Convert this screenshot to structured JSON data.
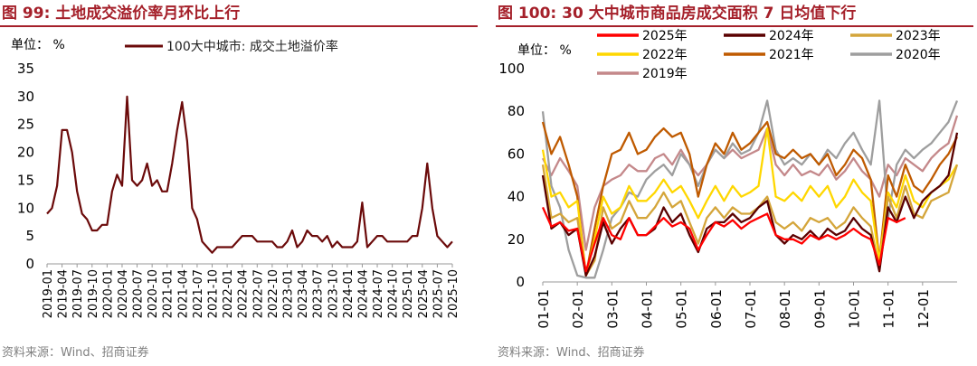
{
  "left": {
    "title": "图 99:  土地成交溢价率月环比上行",
    "source": "资料来源：Wind、招商证券",
    "chart_data": {
      "type": "line",
      "unit_label": "单位：  %",
      "legend": [
        {
          "name": "100大中城市: 成交土地溢价率",
          "color": "#6b0a0a"
        }
      ],
      "ylim": [
        0,
        35
      ],
      "yticks": [
        0,
        5,
        10,
        15,
        20,
        25,
        30,
        35
      ],
      "xlim": [
        "2019-01",
        "2025-10"
      ],
      "xticks": [
        "2019-01",
        "2019-04",
        "2019-07",
        "2019-10",
        "2020-01",
        "2020-04",
        "2020-07",
        "2020-10",
        "2021-01",
        "2021-04",
        "2021-07",
        "2021-10",
        "2022-01",
        "2022-04",
        "2022-07",
        "2022-10",
        "2023-01",
        "2023-04",
        "2023-07",
        "2023-10",
        "2024-01",
        "2024-04",
        "2024-07",
        "2024-10",
        "2025-01",
        "2025-04",
        "2025-07",
        "2025-10"
      ],
      "grid": false,
      "series": [
        {
          "name": "100大中城市: 成交土地溢价率",
          "color": "#6b0a0a",
          "x": [
            "2019-01",
            "2019-02",
            "2019-03",
            "2019-04",
            "2019-05",
            "2019-06",
            "2019-07",
            "2019-08",
            "2019-09",
            "2019-10",
            "2019-11",
            "2019-12",
            "2020-01",
            "2020-02",
            "2020-03",
            "2020-04",
            "2020-05",
            "2020-06",
            "2020-07",
            "2020-08",
            "2020-09",
            "2020-10",
            "2020-11",
            "2020-12",
            "2021-01",
            "2021-02",
            "2021-03",
            "2021-04",
            "2021-05",
            "2021-06",
            "2021-07",
            "2021-08",
            "2021-09",
            "2021-10",
            "2021-11",
            "2021-12",
            "2022-01",
            "2022-02",
            "2022-03",
            "2022-04",
            "2022-05",
            "2022-06",
            "2022-07",
            "2022-08",
            "2022-09",
            "2022-10",
            "2022-11",
            "2022-12",
            "2023-01",
            "2023-02",
            "2023-03",
            "2023-04",
            "2023-05",
            "2023-06",
            "2023-07",
            "2023-08",
            "2023-09",
            "2023-10",
            "2023-11",
            "2023-12",
            "2024-01",
            "2024-02",
            "2024-03",
            "2024-04",
            "2024-05",
            "2024-06",
            "2024-07",
            "2024-08",
            "2024-09",
            "2024-10",
            "2024-11",
            "2024-12",
            "2025-01",
            "2025-02",
            "2025-03",
            "2025-04",
            "2025-05",
            "2025-06",
            "2025-07",
            "2025-08",
            "2025-09",
            "2025-10"
          ],
          "values": [
            9,
            10,
            14,
            24,
            24,
            20,
            13,
            9,
            8,
            6,
            6,
            7,
            7,
            13,
            16,
            14,
            30,
            15,
            14,
            15,
            18,
            14,
            15,
            13,
            13,
            18,
            24,
            29,
            22,
            10,
            8,
            4,
            3,
            2,
            3,
            3,
            3,
            3,
            4,
            5,
            5,
            5,
            4,
            4,
            4,
            4,
            3,
            3,
            4,
            6,
            3,
            4,
            6,
            5,
            5,
            4,
            5,
            3,
            4,
            3,
            3,
            3,
            4,
            11,
            3,
            4,
            5,
            5,
            4,
            4,
            4,
            4,
            4,
            5,
            5,
            10,
            18,
            10,
            5,
            4,
            3,
            4
          ]
        }
      ]
    }
  },
  "right": {
    "title": "图 100:  30 大中城市商品房成交面积 7 日均值下行",
    "source": "资料来源：Wind、招商证券",
    "chart_data": {
      "type": "line",
      "unit_label": "单位：  %",
      "ylim": [
        0,
        100
      ],
      "yticks": [
        0,
        20,
        40,
        60,
        80,
        100
      ],
      "xticks": [
        "01-01",
        "02-01",
        "03-01",
        "04-01",
        "05-01",
        "06-01",
        "07-01",
        "08-01",
        "09-01",
        "10-01",
        "11-01",
        "12-01"
      ],
      "grid": false,
      "series": [
        {
          "name": "2025年",
          "color": "#ff0000",
          "values": [
            35,
            26,
            28,
            24,
            25,
            5,
            18,
            30,
            22,
            20,
            30,
            22,
            22,
            26,
            30,
            26,
            28,
            25,
            15,
            22,
            28,
            26,
            29,
            25,
            28,
            30,
            32,
            22,
            20,
            20,
            18,
            22,
            20,
            22,
            20,
            22,
            25,
            22,
            20,
            8,
            30,
            28,
            30
          ]
        },
        {
          "name": "2024年",
          "color": "#5a0000",
          "values": [
            50,
            25,
            28,
            22,
            25,
            3,
            12,
            28,
            18,
            25,
            30,
            22,
            22,
            25,
            35,
            28,
            32,
            22,
            14,
            25,
            28,
            28,
            32,
            28,
            30,
            35,
            38,
            22,
            18,
            22,
            20,
            24,
            20,
            25,
            22,
            24,
            30,
            25,
            22,
            5,
            35,
            28,
            40,
            30,
            38,
            42,
            45,
            50,
            70
          ]
        },
        {
          "name": "2023年",
          "color": "#d4a53a",
          "values": [
            55,
            30,
            32,
            28,
            30,
            3,
            10,
            35,
            25,
            28,
            38,
            30,
            30,
            35,
            42,
            35,
            38,
            28,
            18,
            30,
            35,
            30,
            35,
            32,
            32,
            35,
            40,
            28,
            25,
            28,
            24,
            30,
            28,
            30,
            25,
            28,
            35,
            30,
            26,
            6,
            40,
            30,
            45,
            32,
            30,
            38,
            40,
            42,
            55
          ]
        },
        {
          "name": "2022年",
          "color": "#ffd700",
          "values": [
            62,
            40,
            42,
            35,
            38,
            3,
            20,
            40,
            32,
            35,
            45,
            38,
            38,
            42,
            48,
            42,
            45,
            38,
            30,
            38,
            45,
            38,
            45,
            40,
            42,
            45,
            72,
            40,
            38,
            42,
            38,
            45,
            40,
            45,
            35,
            40,
            48,
            42,
            38,
            10,
            42,
            35,
            50,
            38,
            35,
            42,
            45,
            48,
            55
          ]
        },
        {
          "name": "2021年",
          "color": "#bf5a00",
          "values": [
            75,
            60,
            68,
            55,
            40,
            3,
            25,
            45,
            60,
            62,
            70,
            60,
            62,
            68,
            72,
            68,
            70,
            60,
            40,
            55,
            65,
            60,
            70,
            62,
            65,
            70,
            75,
            60,
            58,
            62,
            58,
            60,
            55,
            60,
            50,
            55,
            62,
            58,
            48,
            10,
            50,
            40,
            55,
            45,
            42,
            48,
            55,
            60,
            68
          ]
        },
        {
          "name": "2020年",
          "color": "#9e9e9e",
          "values": [
            80,
            45,
            35,
            15,
            3,
            2,
            2,
            15,
            30,
            35,
            42,
            40,
            48,
            52,
            55,
            50,
            60,
            55,
            45,
            55,
            62,
            58,
            65,
            60,
            62,
            70,
            85,
            62,
            55,
            58,
            55,
            60,
            55,
            62,
            58,
            65,
            70,
            62,
            55,
            85,
            30,
            55,
            62,
            58,
            62,
            65,
            70,
            75,
            85
          ]
        },
        {
          "name": "2019年",
          "color": "#c4888a",
          "values": [
            58,
            50,
            58,
            52,
            45,
            15,
            35,
            45,
            48,
            50,
            55,
            52,
            52,
            58,
            60,
            55,
            62,
            55,
            50,
            55,
            62,
            58,
            62,
            58,
            60,
            62,
            72,
            55,
            50,
            55,
            50,
            52,
            50,
            55,
            48,
            52,
            58,
            52,
            48,
            40,
            55,
            50,
            58,
            55,
            52,
            58,
            62,
            65,
            78
          ]
        }
      ]
    }
  }
}
